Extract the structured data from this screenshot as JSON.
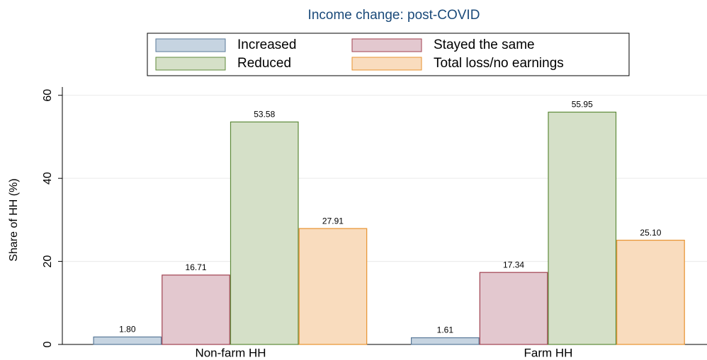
{
  "chart_data": {
    "type": "bar",
    "title": "Income change: post-COVID",
    "ylabel": "Share of HH (%)",
    "categories": [
      "Non-farm HH",
      "Farm HH"
    ],
    "series": [
      {
        "name": "Increased",
        "color": "#c6d4e1",
        "edge": "#5a7a99",
        "values": [
          1.8,
          1.61
        ],
        "value_labels": [
          "1.80",
          "1.61"
        ]
      },
      {
        "name": "Stayed the same",
        "color": "#e3c8cf",
        "edge": "#a0414f",
        "values": [
          16.71,
          17.34
        ],
        "value_labels": [
          "16.71",
          "17.34"
        ]
      },
      {
        "name": "Reduced",
        "color": "#d5e0c8",
        "edge": "#5e8a3a",
        "values": [
          53.58,
          55.95
        ],
        "value_labels": [
          "53.58",
          "55.95"
        ]
      },
      {
        "name": "Total loss/no earnings",
        "color": "#f9dcbe",
        "edge": "#e8922e",
        "values": [
          27.91,
          25.1
        ],
        "value_labels": [
          "27.91",
          "25.10"
        ]
      }
    ],
    "ylim": [
      0,
      62
    ],
    "yticks": [
      0,
      20,
      40,
      60
    ],
    "grid": true,
    "legend": "top"
  }
}
